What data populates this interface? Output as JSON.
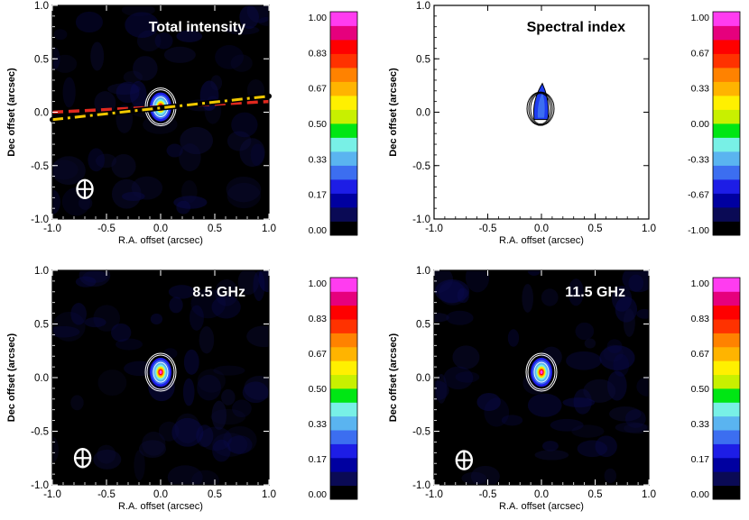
{
  "figure": {
    "description_free": true
  },
  "colormap": [
    "#000000",
    "#0a0a55",
    "#0000a0",
    "#1d1de6",
    "#3c6ef0",
    "#5ab4f0",
    "#78f0e6",
    "#00e614",
    "#c8f000",
    "#fff000",
    "#ffb400",
    "#ff8200",
    "#ff3200",
    "#ff0000",
    "#e6007d",
    "#ff3cf0"
  ],
  "chart_data": [
    {
      "type": "heatmap",
      "title": "Total intensity",
      "xlabel": "R.A. offset (arcsec)",
      "ylabel": "Dec offset (arcsec)",
      "xlim": [
        -1.0,
        1.0
      ],
      "ylim": [
        -1.0,
        1.0
      ],
      "xticks": [
        "-1.0",
        "-0.5",
        "0.0",
        "0.5",
        "1.0"
      ],
      "yticks": [
        "-1.0",
        "-0.5",
        "0.0",
        "0.5",
        "1.0"
      ],
      "background": "dark",
      "source": {
        "x": 0.0,
        "y": 0.05,
        "peak": 1.0
      },
      "lines": [
        {
          "name": "red dashed",
          "color": "#e0281e",
          "style": "dashed",
          "points": [
            [
              -1.0,
              0.0
            ],
            [
              1.0,
              0.1
            ]
          ]
        },
        {
          "name": "yellow dash-dot",
          "color": "#f0c800",
          "style": "dashdot",
          "points": [
            [
              -1.0,
              -0.07
            ],
            [
              1.0,
              0.15
            ]
          ]
        }
      ],
      "beam": {
        "x": -0.7,
        "y": -0.72
      },
      "colorbar": {
        "range": [
          0.0,
          1.0
        ],
        "ticks": [
          "1.00",
          "0.83",
          "0.67",
          "0.50",
          "0.33",
          "0.17",
          "0.00"
        ]
      }
    },
    {
      "type": "heatmap",
      "title": "Spectral index",
      "xlabel": "R.A. offset (arcsec)",
      "ylabel": "Dec offset (arcsec)",
      "xlim": [
        -1.0,
        1.0
      ],
      "ylim": [
        -1.0,
        1.0
      ],
      "xticks": [
        "-1.0",
        "-0.5",
        "0.0",
        "0.5",
        "1.0"
      ],
      "yticks": [
        "-1.0",
        "-0.5",
        "0.0",
        "0.5",
        "1.0"
      ],
      "background": "light",
      "source": {
        "x": 0.0,
        "y": 0.05,
        "peak": -0.5
      },
      "lines": [],
      "beam": null,
      "colorbar": {
        "range": [
          -1.0,
          1.0
        ],
        "ticks": [
          "1.00",
          "0.67",
          "0.33",
          "0.00",
          "-0.33",
          "-0.67",
          "-1.00"
        ]
      }
    },
    {
      "type": "heatmap",
      "title": "8.5 GHz",
      "xlabel": "R.A. offset (arcsec)",
      "ylabel": "Dec offset (arcsec)",
      "xlim": [
        -1.0,
        1.0
      ],
      "ylim": [
        -1.0,
        1.0
      ],
      "xticks": [
        "-1.0",
        "-0.5",
        "0.0",
        "0.5",
        "1.0"
      ],
      "yticks": [
        "-1.0",
        "-0.5",
        "0.0",
        "0.5",
        "1.0"
      ],
      "background": "dark",
      "source": {
        "x": 0.0,
        "y": 0.05,
        "peak": 1.0
      },
      "lines": [],
      "beam": {
        "x": -0.72,
        "y": -0.75
      },
      "colorbar": {
        "range": [
          0.0,
          1.0
        ],
        "ticks": [
          "1.00",
          "0.83",
          "0.67",
          "0.50",
          "0.33",
          "0.17",
          "0.00"
        ]
      }
    },
    {
      "type": "heatmap",
      "title": "11.5 GHz",
      "xlabel": "R.A. offset (arcsec)",
      "ylabel": "Dec offset (arcsec)",
      "xlim": [
        -1.0,
        1.0
      ],
      "ylim": [
        -1.0,
        1.0
      ],
      "xticks": [
        "-1.0",
        "-0.5",
        "0.0",
        "0.5",
        "1.0"
      ],
      "yticks": [
        "-1.0",
        "-0.5",
        "0.0",
        "0.5",
        "1.0"
      ],
      "background": "dark",
      "source": {
        "x": 0.0,
        "y": 0.05,
        "peak": 1.0
      },
      "lines": [],
      "beam": {
        "x": -0.72,
        "y": -0.77
      },
      "colorbar": {
        "range": [
          0.0,
          1.0
        ],
        "ticks": [
          "1.00",
          "0.83",
          "0.67",
          "0.50",
          "0.33",
          "0.17",
          "0.00"
        ]
      }
    }
  ]
}
